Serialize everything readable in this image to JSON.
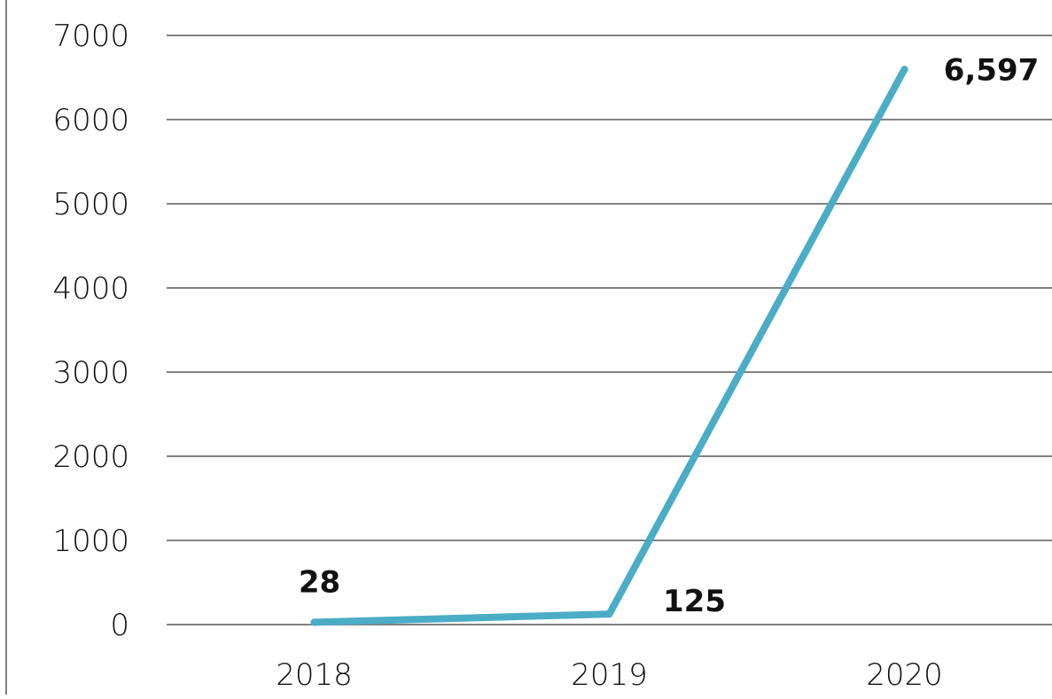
{
  "chart_data": {
    "type": "line",
    "categories": [
      "2018",
      "2019",
      "2020"
    ],
    "series": [
      {
        "values": [
          28,
          125,
          6597
        ]
      }
    ],
    "data_labels": [
      "28",
      "125",
      "6,597"
    ],
    "y_ticks": [
      "0",
      "1000",
      "2000",
      "3000",
      "4000",
      "5000",
      "6000",
      "7000"
    ],
    "ylim": [
      0,
      7000
    ],
    "grid": true,
    "line_color": "#4bacc6",
    "grid_color": "#808080"
  }
}
